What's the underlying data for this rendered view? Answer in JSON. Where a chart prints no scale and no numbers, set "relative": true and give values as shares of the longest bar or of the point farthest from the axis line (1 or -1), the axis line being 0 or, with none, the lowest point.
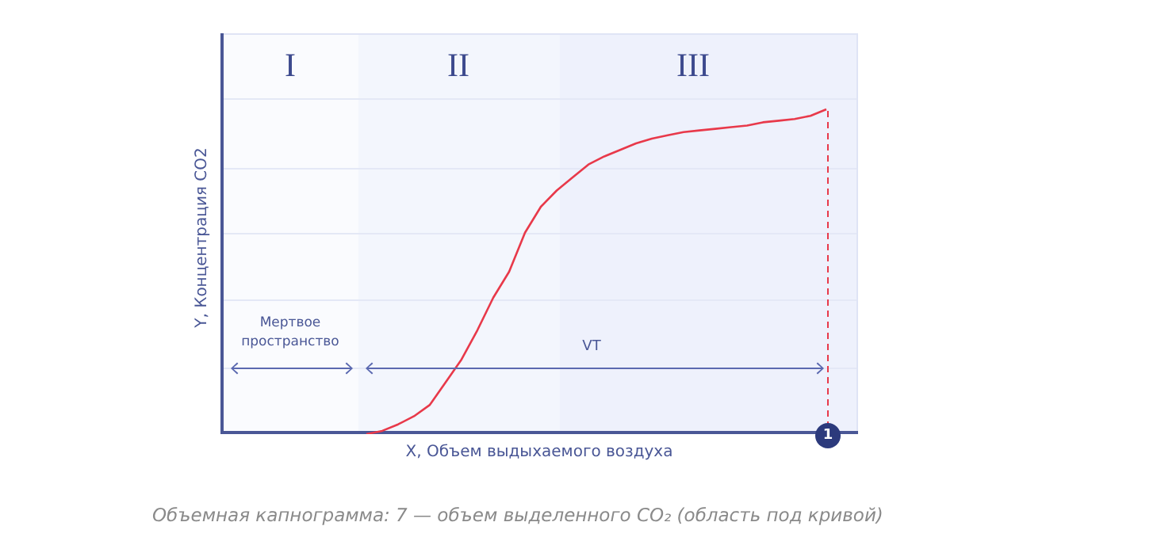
{
  "chart_data": {
    "type": "line",
    "relative": true,
    "xlabel": "X, Объем выдыхаемого воздуха",
    "ylabel": "Y, Концентрация CO2",
    "categories": [
      null,
      null,
      null,
      null,
      null,
      null,
      null,
      null,
      null,
      null,
      null,
      null,
      null,
      null,
      null,
      null,
      null,
      null,
      null,
      null,
      null,
      null,
      null,
      null,
      null,
      null,
      null,
      null,
      null,
      null,
      null,
      null,
      null,
      null,
      null,
      null,
      null,
      null,
      null,
      null,
      null
    ],
    "series": [
      {
        "color": "#e8394a",
        "values": [
          null,
          null,
          null,
          null,
          null,
          null,
          null,
          null,
          null,
          0,
          0.01,
          0.03,
          0.055,
          0.09,
          0.16,
          0.23,
          0.32,
          0.42,
          0.5,
          0.62,
          0.7,
          0.75,
          0.79,
          0.83,
          0.855,
          0.875,
          0.895,
          0.91,
          0.92,
          0.93,
          0.935,
          0.94,
          0.945,
          0.95,
          0.96,
          0.965,
          0.97,
          0.98,
          1,
          null,
          null
        ]
      }
    ],
    "annotations": [
      "I",
      "II",
      "III",
      "Мертвое пространство",
      "VT",
      "1",
      "Объемная капнограмма: 7 — объем выделенного CO₂ (область под кривой)"
    ],
    "legend": false,
    "marker": "none",
    "line_style": "solid"
  }
}
